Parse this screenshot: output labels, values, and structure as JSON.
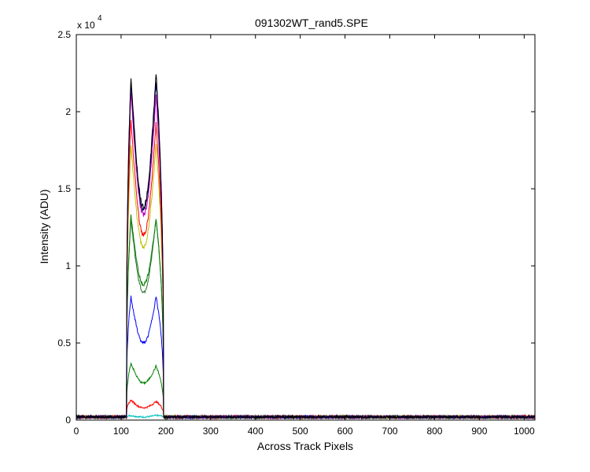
{
  "chart_data": {
    "type": "line",
    "title": "091302WT_rand5.SPE",
    "xlabel": "Across Track Pixels",
    "ylabel": "Intensity (ADU)",
    "multiplier_label": "x 10",
    "multiplier_exponent": "4",
    "xlim": [
      0,
      1024
    ],
    "ylim": [
      0,
      2.5
    ],
    "x_ticks": [
      0,
      100,
      200,
      300,
      400,
      500,
      600,
      700,
      800,
      900,
      1000
    ],
    "y_ticks": [
      0,
      0.5,
      1,
      1.5,
      2,
      2.5
    ],
    "x_tick_labels": [
      "0",
      "100",
      "200",
      "300",
      "400",
      "500",
      "600",
      "700",
      "800",
      "900",
      "1000"
    ],
    "y_tick_labels": [
      "0",
      "0.5",
      "1",
      "1.5",
      "2",
      "2.5"
    ],
    "grid": false,
    "legend": "none",
    "baseline": 0.02,
    "signal_x_range": [
      112,
      195
    ],
    "series": [
      {
        "color": "#00bfbf",
        "left_peak": 0.03,
        "valley": 0.02,
        "right_peak": 0.03
      },
      {
        "color": "#ff0000",
        "left_peak": 0.13,
        "valley": 0.08,
        "right_peak": 0.12
      },
      {
        "color": "#008000",
        "left_peak": 0.37,
        "valley": 0.24,
        "right_peak": 0.35
      },
      {
        "color": "#0000ff",
        "left_peak": 0.8,
        "valley": 0.5,
        "right_peak": 0.8
      },
      {
        "color": "#2f6f2f",
        "left_peak": 1.3,
        "valley": 0.83,
        "right_peak": 1.3
      },
      {
        "color": "#008000",
        "left_peak": 1.33,
        "valley": 0.88,
        "right_peak": 1.3
      },
      {
        "color": "#bfbf00",
        "left_peak": 1.78,
        "valley": 1.12,
        "right_peak": 1.78
      },
      {
        "color": "#ff0000",
        "left_peak": 1.95,
        "valley": 1.2,
        "right_peak": 1.92
      },
      {
        "color": "#bf00bf",
        "left_peak": 2.13,
        "valley": 1.33,
        "right_peak": 2.1
      },
      {
        "color": "#000080",
        "left_peak": 2.2,
        "valley": 1.36,
        "right_peak": 2.2
      },
      {
        "color": "#000000",
        "left_peak": 2.23,
        "valley": 1.38,
        "right_peak": 2.25
      }
    ]
  }
}
